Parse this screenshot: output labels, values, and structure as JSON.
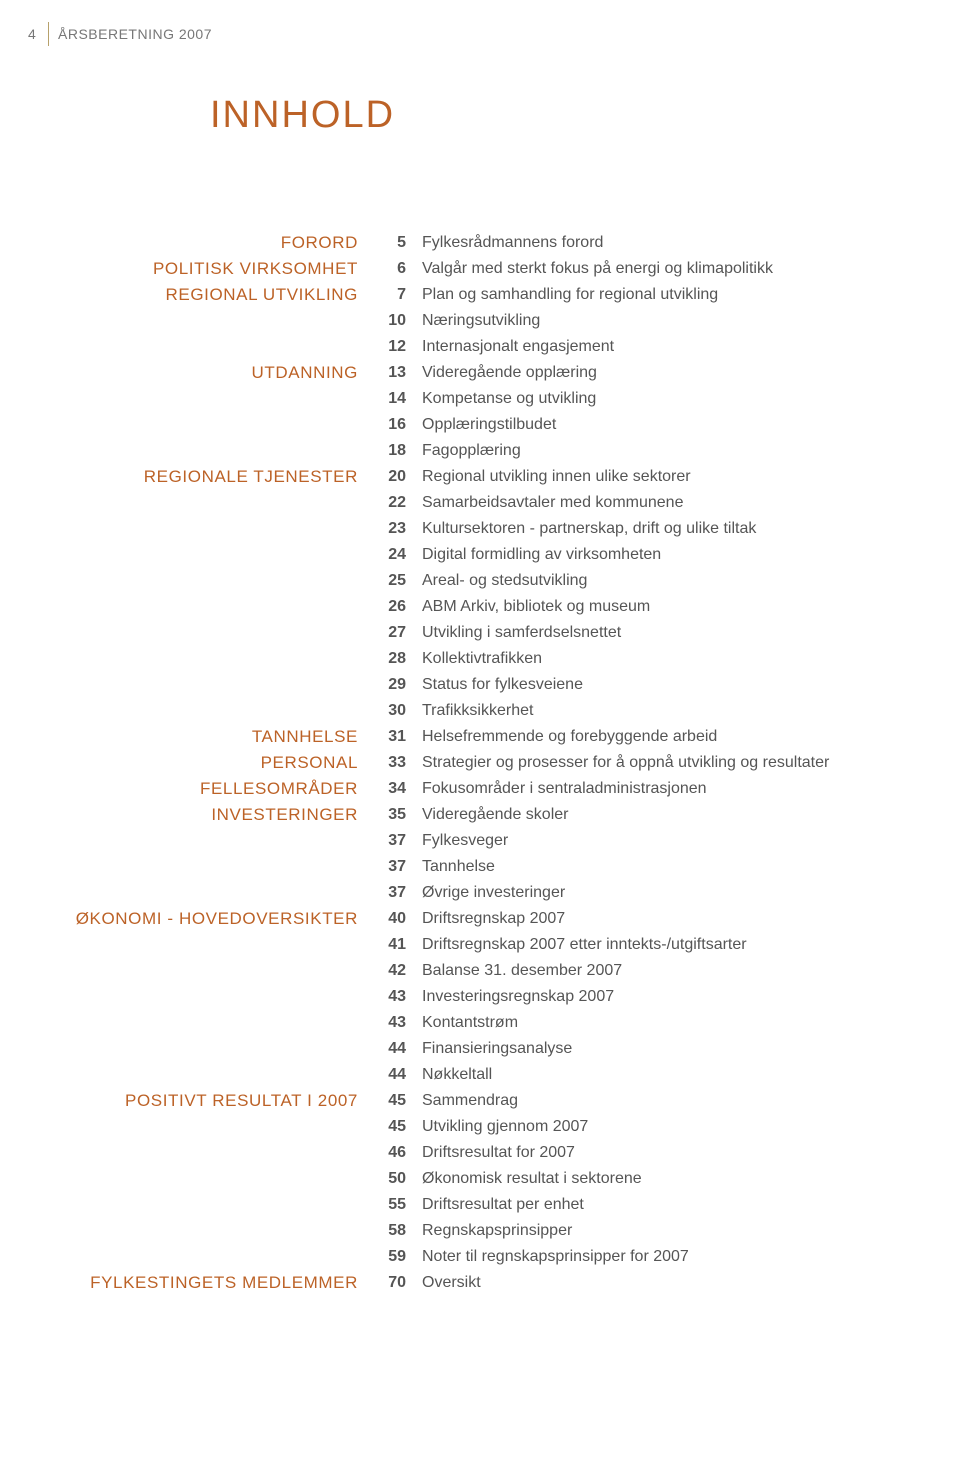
{
  "page_number": "4",
  "header_label": "ÅRSBERETNING 2007",
  "main_title": "INNHOLD",
  "colors": {
    "section_heading": "#bc6227",
    "body_text": "#555555",
    "page_num_bold": "#555555",
    "header_divider": "#b7a16b",
    "background": "#ffffff"
  },
  "typography": {
    "body_fontsize": 16,
    "section_fontsize": 17,
    "title_fontsize": 38,
    "header_fontsize": 14,
    "line_height": 26
  },
  "rows": [
    {
      "section": "FORORD",
      "page": "5",
      "label": "Fylkesrådmannens forord"
    },
    {
      "section": "POLITISK VIRKSOMHET",
      "page": "6",
      "label": "Valgår med sterkt fokus på energi og klimapolitikk"
    },
    {
      "section": "REGIONAL UTVIKLING",
      "page": "7",
      "label": "Plan og samhandling for regional utvikling"
    },
    {
      "section": "",
      "page": "10",
      "label": "Næringsutvikling"
    },
    {
      "section": "",
      "page": "12",
      "label": "Internasjonalt engasjement"
    },
    {
      "section": "UTDANNING",
      "page": "13",
      "label": "Videregående opplæring"
    },
    {
      "section": "",
      "page": "14",
      "label": "Kompetanse og utvikling"
    },
    {
      "section": "",
      "page": "16",
      "label": "Opplæringstilbudet"
    },
    {
      "section": "",
      "page": "18",
      "label": "Fagopplæring"
    },
    {
      "section": "REGIONALE TJENESTER",
      "page": "20",
      "label": "Regional utvikling innen ulike sektorer"
    },
    {
      "section": "",
      "page": "22",
      "label": "Samarbeidsavtaler med kommunene"
    },
    {
      "section": "",
      "page": "23",
      "label": "Kultursektoren - partnerskap, drift og ulike tiltak"
    },
    {
      "section": "",
      "page": "24",
      "label": "Digital formidling av virksomheten"
    },
    {
      "section": "",
      "page": "25",
      "label": "Areal- og stedsutvikling"
    },
    {
      "section": "",
      "page": "26",
      "label": "ABM Arkiv, bibliotek og museum"
    },
    {
      "section": "",
      "page": "27",
      "label": "Utvikling i samferdselsnettet"
    },
    {
      "section": "",
      "page": "28",
      "label": "Kollektivtrafikken"
    },
    {
      "section": "",
      "page": "29",
      "label": "Status for fylkesveiene"
    },
    {
      "section": "",
      "page": "30",
      "label": "Trafikksikkerhet"
    },
    {
      "section": "TANNHELSE",
      "page": "31",
      "label": "Helsefremmende og forebyggende arbeid"
    },
    {
      "section": "PERSONAL",
      "page": "33",
      "label": "Strategier og prosesser for å oppnå utvikling og resultater"
    },
    {
      "section": "FELLESOMRÅDER",
      "page": "34",
      "label": "Fokusområder i sentraladministrasjonen"
    },
    {
      "section": "INVESTERINGER",
      "page": "35",
      "label": "Videregående skoler"
    },
    {
      "section": "",
      "page": "37",
      "label": "Fylkesveger"
    },
    {
      "section": "",
      "page": "37",
      "label": "Tannhelse"
    },
    {
      "section": "",
      "page": "37",
      "label": "Øvrige investeringer"
    },
    {
      "section": "ØKONOMI - HOVEDOVERSIKTER",
      "page": "40",
      "label": "Driftsregnskap 2007"
    },
    {
      "section": "",
      "page": "41",
      "label": "Driftsregnskap 2007 etter inntekts-/utgiftsarter"
    },
    {
      "section": "",
      "page": "42",
      "label": "Balanse 31. desember 2007"
    },
    {
      "section": "",
      "page": "43",
      "label": "Investeringsregnskap 2007"
    },
    {
      "section": "",
      "page": "43",
      "label": "Kontantstrøm"
    },
    {
      "section": "",
      "page": "44",
      "label": "Finansieringsanalyse"
    },
    {
      "section": "",
      "page": "44",
      "label": "Nøkkeltall"
    },
    {
      "section": "POSITIVT RESULTAT I 2007",
      "page": "45",
      "label": "Sammendrag"
    },
    {
      "section": "",
      "page": "45",
      "label": "Utvikling gjennom 2007"
    },
    {
      "section": "",
      "page": "46",
      "label": "Driftsresultat for 2007"
    },
    {
      "section": "",
      "page": "50",
      "label": "Økonomisk resultat i sektorene"
    },
    {
      "section": "",
      "page": "55",
      "label": "Driftsresultat per enhet"
    },
    {
      "section": "",
      "page": "58",
      "label": "Regnskapsprinsipper"
    },
    {
      "section": "",
      "page": "59",
      "label": "Noter til regnskapsprinsipper for 2007"
    },
    {
      "section": "FYLKESTINGETS MEDLEMMER",
      "page": "70",
      "label": "Oversikt"
    }
  ]
}
